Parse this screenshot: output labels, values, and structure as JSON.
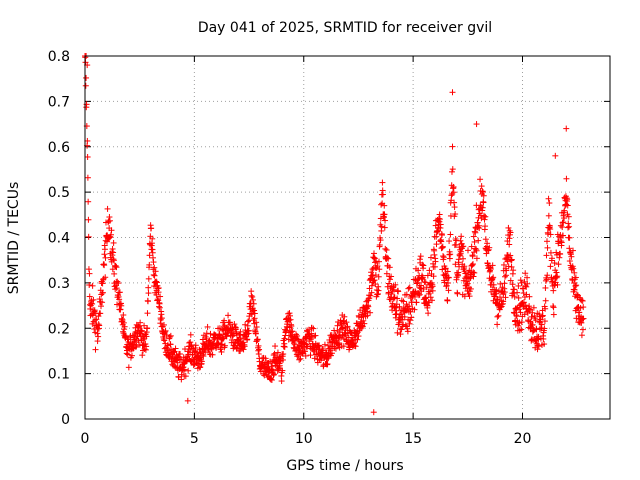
{
  "chart_data": {
    "type": "scatter",
    "title": "Day 041 of 2025, SRMTID for receiver gvil",
    "xlabel": "GPS time / hours",
    "ylabel": "SRMTID / TECUs",
    "xlim": [
      0,
      24
    ],
    "ylim": [
      0,
      0.8
    ],
    "xticks": [
      0,
      5,
      10,
      15,
      20
    ],
    "xtick_labels": [
      "0",
      "5",
      "10",
      "15",
      "20"
    ],
    "yticks": [
      0,
      0.1,
      0.2,
      0.3,
      0.4,
      0.5,
      0.6,
      0.7,
      0.8
    ],
    "ytick_labels": [
      "0",
      "0.1",
      "0.2",
      "0.3",
      "0.4",
      "0.5",
      "0.6",
      "0.7",
      "0.8"
    ],
    "grid": true,
    "marker": "plus",
    "color": "#ff0000",
    "series": [
      {
        "name": "SRMTID",
        "x": [
          0.0,
          0.05,
          0.1,
          0.15,
          0.2,
          0.25,
          0.3,
          0.4,
          0.5,
          0.6,
          0.7,
          0.8,
          0.9,
          1.0,
          1.1,
          1.2,
          1.3,
          1.4,
          1.5,
          1.6,
          1.7,
          1.8,
          1.9,
          2.0,
          2.2,
          2.4,
          2.6,
          2.8,
          3.0,
          3.2,
          3.4,
          3.5,
          3.6,
          3.8,
          4.0,
          4.2,
          4.4,
          4.6,
          4.8,
          5.0,
          5.2,
          5.4,
          5.6,
          5.8,
          6.0,
          6.2,
          6.4,
          6.6,
          6.8,
          7.0,
          7.2,
          7.4,
          7.6,
          7.8,
          8.0,
          8.2,
          8.4,
          8.6,
          8.8,
          9.0,
          9.2,
          9.4,
          9.6,
          9.8,
          10.0,
          10.2,
          10.4,
          10.6,
          10.8,
          11.0,
          11.2,
          11.4,
          11.6,
          11.8,
          12.0,
          12.2,
          12.4,
          12.6,
          12.8,
          13.0,
          13.2,
          13.4,
          13.6,
          13.8,
          14.0,
          14.2,
          14.4,
          14.6,
          14.8,
          15.0,
          15.2,
          15.4,
          15.6,
          15.8,
          16.0,
          16.2,
          16.4,
          16.6,
          16.8,
          17.0,
          17.2,
          17.4,
          17.6,
          17.8,
          18.0,
          18.2,
          18.4,
          18.6,
          18.8,
          19.0,
          19.2,
          19.4,
          19.6,
          19.8,
          20.0,
          20.2,
          20.4,
          20.6,
          20.8,
          21.0,
          21.2,
          21.4,
          21.6,
          21.8,
          22.0,
          22.2,
          22.4,
          22.6,
          22.8
        ],
        "y": [
          0.8,
          0.72,
          0.62,
          0.47,
          0.3,
          0.22,
          0.25,
          0.23,
          0.21,
          0.19,
          0.24,
          0.3,
          0.35,
          0.4,
          0.45,
          0.38,
          0.34,
          0.31,
          0.29,
          0.25,
          0.22,
          0.18,
          0.16,
          0.15,
          0.17,
          0.2,
          0.18,
          0.16,
          0.42,
          0.3,
          0.26,
          0.22,
          0.18,
          0.16,
          0.14,
          0.12,
          0.11,
          0.13,
          0.15,
          0.14,
          0.13,
          0.15,
          0.17,
          0.16,
          0.18,
          0.17,
          0.19,
          0.2,
          0.18,
          0.17,
          0.16,
          0.18,
          0.26,
          0.2,
          0.12,
          0.11,
          0.1,
          0.12,
          0.13,
          0.11,
          0.22,
          0.2,
          0.17,
          0.15,
          0.16,
          0.18,
          0.17,
          0.15,
          0.14,
          0.13,
          0.16,
          0.18,
          0.19,
          0.2,
          0.18,
          0.17,
          0.19,
          0.21,
          0.24,
          0.27,
          0.35,
          0.29,
          0.5,
          0.33,
          0.28,
          0.25,
          0.23,
          0.22,
          0.24,
          0.27,
          0.3,
          0.32,
          0.26,
          0.28,
          0.38,
          0.44,
          0.34,
          0.3,
          0.55,
          0.32,
          0.37,
          0.29,
          0.3,
          0.38,
          0.45,
          0.5,
          0.34,
          0.3,
          0.27,
          0.25,
          0.3,
          0.4,
          0.28,
          0.24,
          0.26,
          0.27,
          0.22,
          0.2,
          0.19,
          0.21,
          0.45,
          0.28,
          0.36,
          0.4,
          0.5,
          0.35,
          0.27,
          0.24,
          0.2
        ],
        "outliers_x": [
          0.05,
          0.1,
          4.7,
          13.2,
          16.8,
          17.9,
          21.5,
          22.0
        ],
        "outliers_y": [
          0.8,
          0.78,
          0.04,
          0.015,
          0.72,
          0.65,
          0.58,
          0.64
        ]
      }
    ]
  }
}
